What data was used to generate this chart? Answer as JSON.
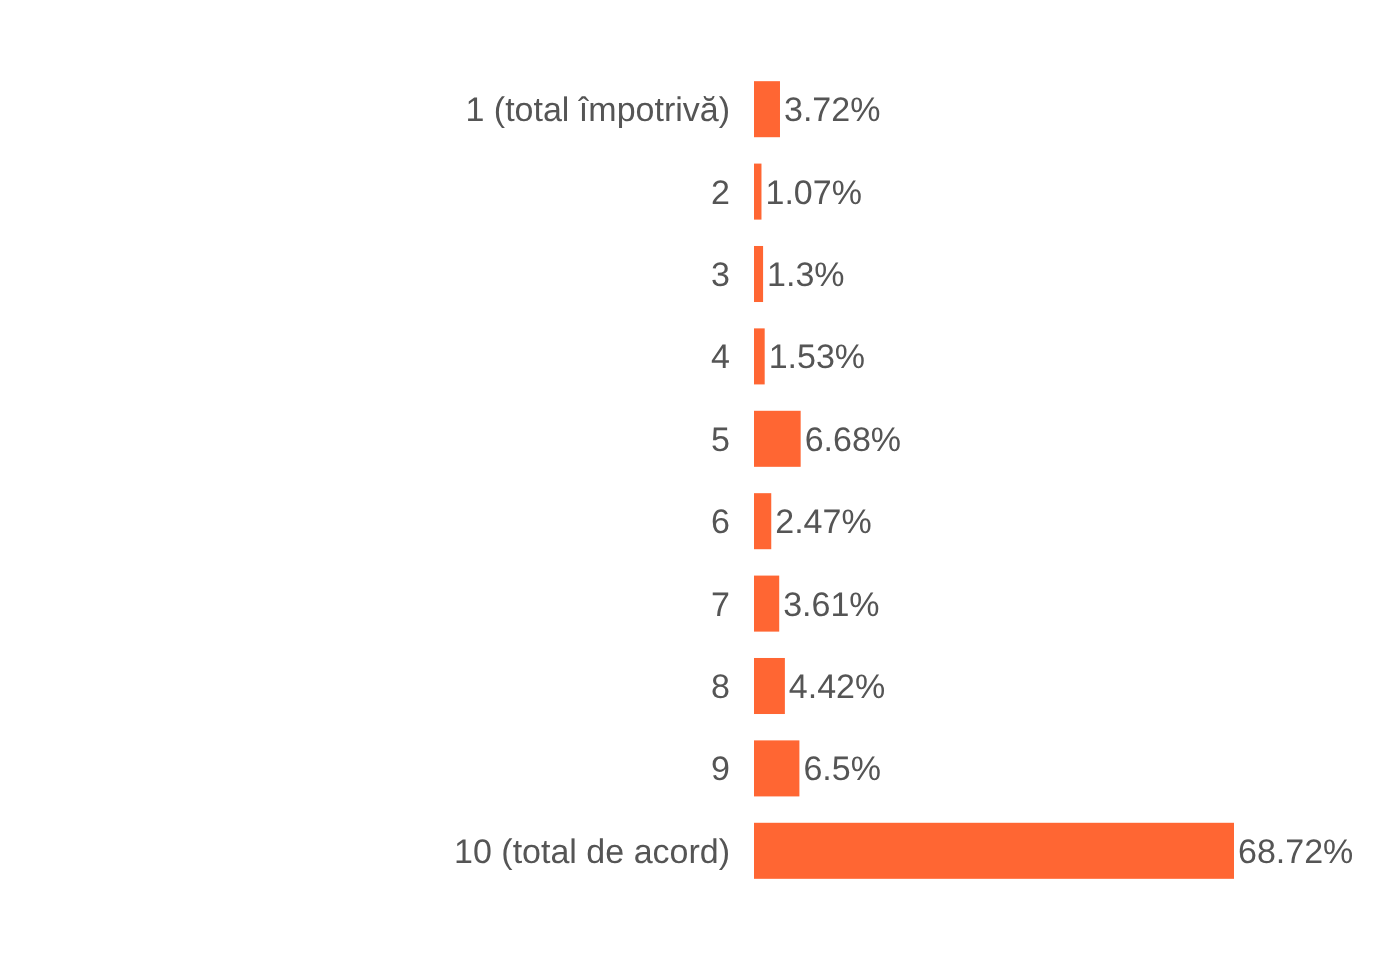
{
  "chart_data": {
    "type": "bar",
    "orientation": "horizontal",
    "categories": [
      "1 (total împotrivă)",
      "2",
      "3",
      "4",
      "5",
      "6",
      "7",
      "8",
      "9",
      "10 (total de acord)"
    ],
    "values": [
      3.72,
      1.07,
      1.3,
      1.53,
      6.68,
      2.47,
      3.61,
      4.42,
      6.5,
      68.72
    ],
    "value_labels": [
      "3.72%",
      "1.07%",
      "1.3%",
      "1.53%",
      "6.68%",
      "2.47%",
      "3.61%",
      "4.42%",
      "6.5%",
      "68.72%"
    ],
    "color": "#ff6633"
  }
}
